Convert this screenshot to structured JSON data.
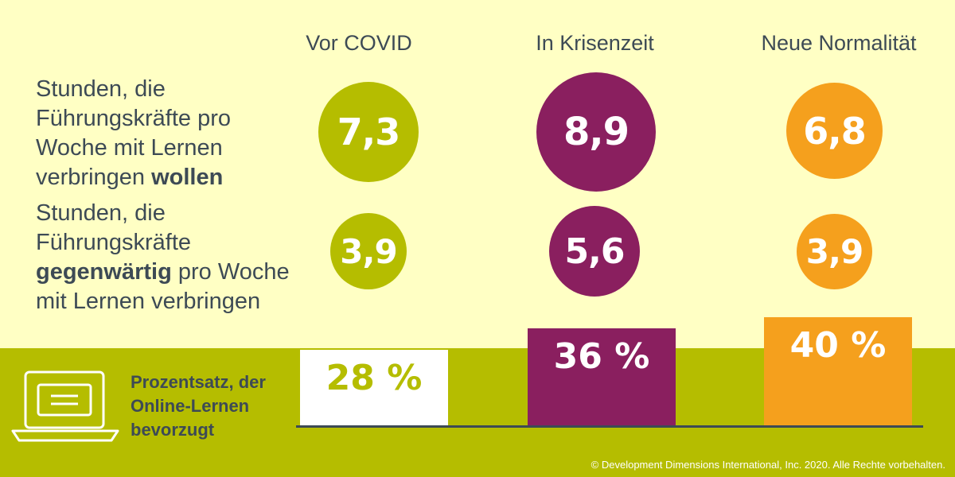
{
  "columns": [
    "Vor COVID",
    "In Krisenzeit",
    "Neue Normalität"
  ],
  "rows": {
    "want": {
      "prefix": "Stunden, die Führungskräfte pro Woche mit Lernen verbringen ",
      "bold": "wollen"
    },
    "actual": {
      "prefix": "Stunden, die Führungskräfte ",
      "bold": "gegenwärtig",
      "suffix": " pro Woche mit Lernen verbringen"
    }
  },
  "online": {
    "label": "Prozentsatz, der Online-Lernen bevorzugt",
    "icon": "laptop-certificate-icon"
  },
  "colors": {
    "vor_covid": "#b5bd00",
    "krisenzeit": "#8a1f5f",
    "neue_normalitaet": "#f5a01d",
    "background": "#ffffc4",
    "text": "#3d4a55"
  },
  "chart_data": [
    {
      "type": "bubble",
      "categories": [
        "Vor COVID",
        "In Krisenzeit",
        "Neue Normalität"
      ],
      "series": [
        {
          "values": [
            7.3,
            8.9,
            6.8
          ],
          "labels": [
            "7,3",
            "8,9",
            "6,8"
          ]
        },
        {
          "values": [
            3.9,
            5.6,
            3.9
          ],
          "labels": [
            "3,9",
            "5,6",
            "3,9"
          ]
        }
      ]
    },
    {
      "type": "bar",
      "categories": [
        "Vor COVID",
        "In Krisenzeit",
        "Neue Normalität"
      ],
      "values": [
        28,
        36,
        40
      ],
      "labels": [
        "28 %",
        "36 %",
        "40 %"
      ]
    }
  ],
  "footer": {
    "copyright": "© Development Dimensions International, Inc. 2020. Alle Rechte vorbehalten."
  }
}
